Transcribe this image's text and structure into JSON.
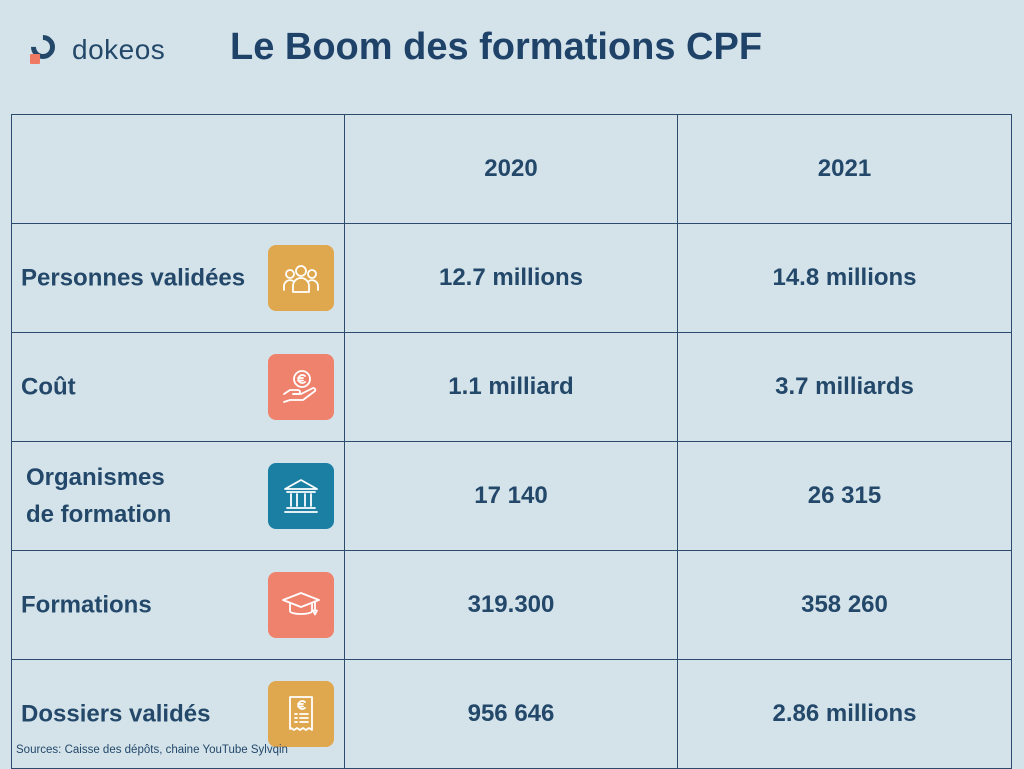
{
  "brand": {
    "name": "dokeos"
  },
  "title": "Le Boom des formations CPF",
  "colors": {
    "background": "#d4e3ea",
    "text": "#23486a",
    "icon_yellow": "#e0a84e",
    "icon_salmon": "#ef826c",
    "icon_blue": "#1a7fa3",
    "logo_accent": "#ef7a62"
  },
  "table": {
    "headers": [
      "",
      "2020",
      "2021"
    ],
    "rows": [
      {
        "label": "Personnes validées",
        "icon": "people-group-icon",
        "values": [
          "12.7 millions",
          "14.8 millions"
        ]
      },
      {
        "label": "Coût",
        "icon": "hand-euro-coin-icon",
        "values": [
          "1.1 milliard",
          "3.7 milliards"
        ]
      },
      {
        "label_line1": "Organismes",
        "label_line2": "de formation",
        "icon": "institution-building-icon",
        "values": [
          "17 140",
          "26 315"
        ]
      },
      {
        "label": "Formations",
        "icon": "graduation-cap-icon",
        "values": [
          "319.300",
          "358 260"
        ]
      },
      {
        "label": "Dossiers validés",
        "icon": "euro-receipt-icon",
        "values": [
          "956 646",
          "2.86 millions"
        ]
      }
    ]
  },
  "source": "Sources: Caisse des dépôts, chaine YouTube Sylvqin"
}
